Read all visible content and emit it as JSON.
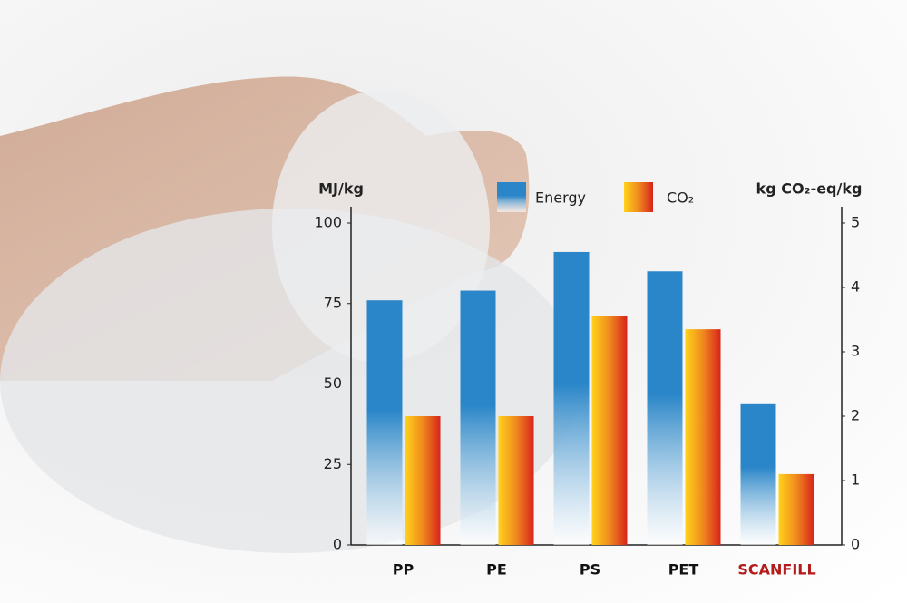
{
  "chart_data": {
    "type": "bar",
    "categories": [
      "PP",
      "PE",
      "PS",
      "PET",
      "SCANFILL"
    ],
    "category_colors": [
      "#111111",
      "#111111",
      "#111111",
      "#111111",
      "#b31b1b"
    ],
    "y_label": "MJ/kg",
    "y2_label": "kg CO₂-eq/kg",
    "series": [
      {
        "name": "Energy",
        "color": "#2a86c8",
        "values": [
          76,
          79,
          91,
          85,
          44
        ]
      },
      {
        "name": "CO₂",
        "color": "#d8231c",
        "axis": "y2",
        "values": [
          2.0,
          2.0,
          3.55,
          3.35,
          1.1
        ]
      }
    ],
    "ylim": [
      0,
      100
    ],
    "yticks": [
      0,
      25,
      50,
      75,
      100
    ],
    "y2lim": [
      0,
      5
    ],
    "y2ticks": [
      0,
      1,
      2,
      3,
      4,
      5
    ]
  }
}
